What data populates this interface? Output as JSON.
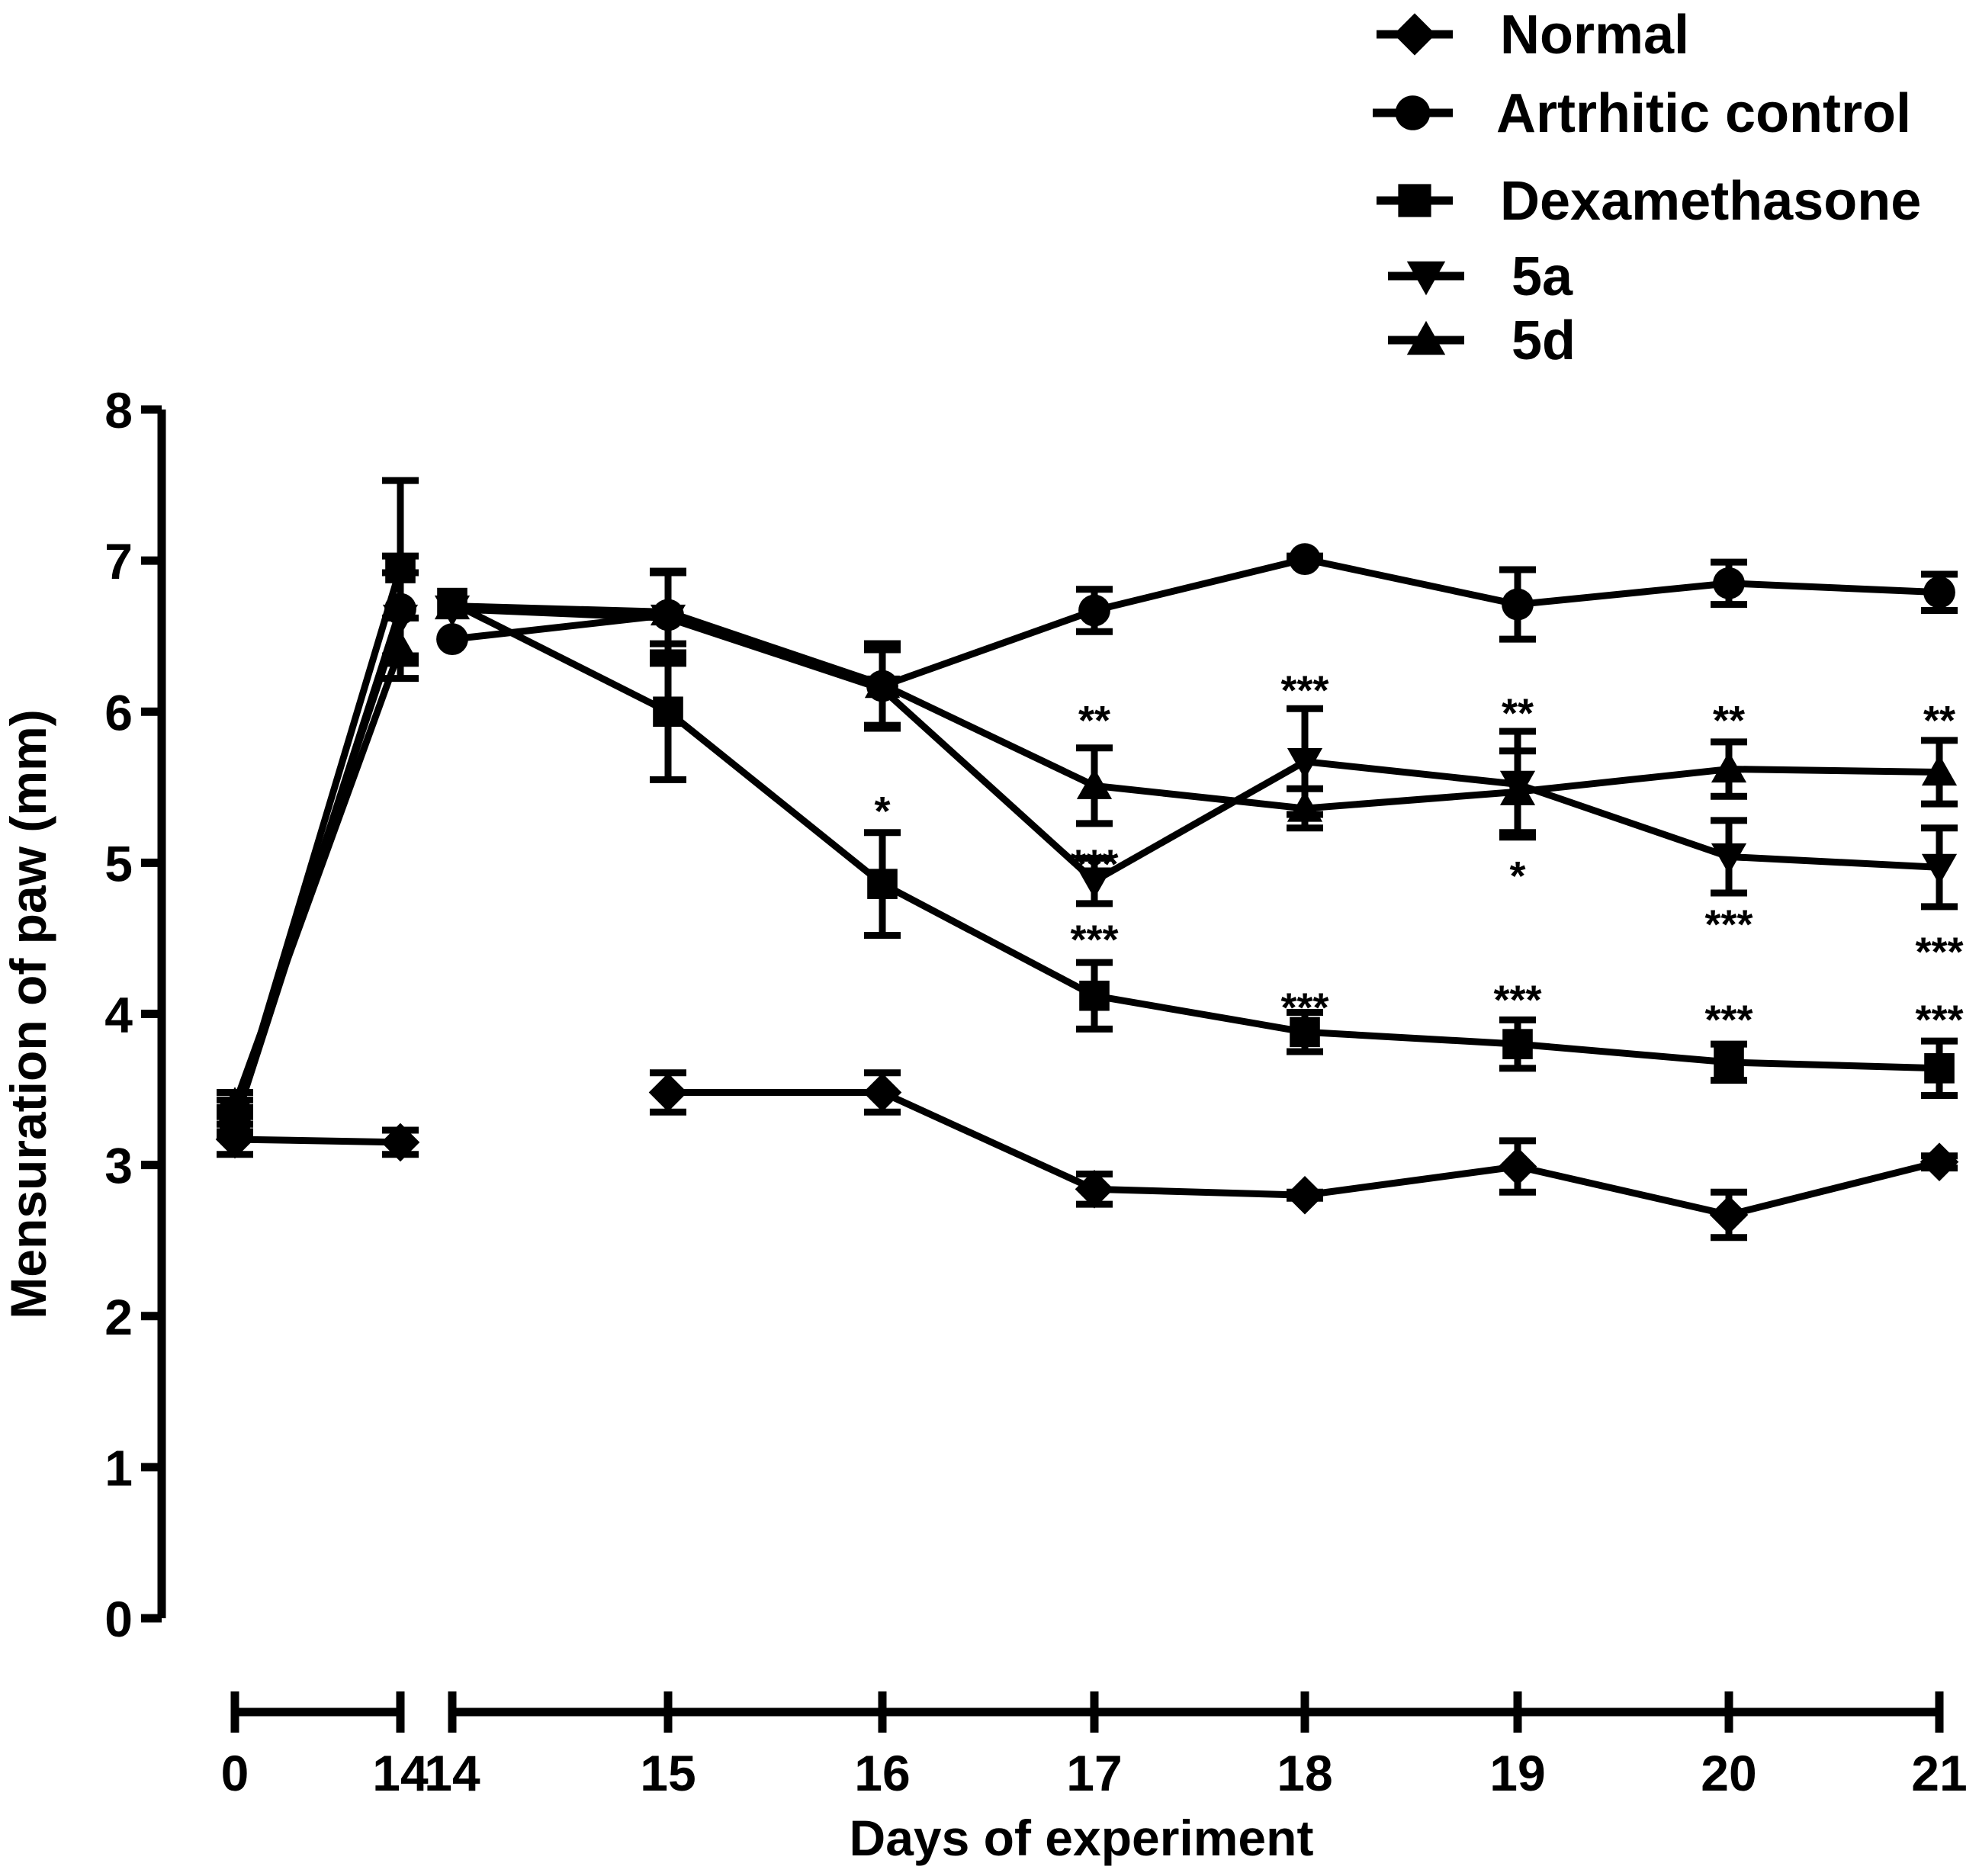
{
  "chart_data": {
    "type": "line",
    "xlabel": "Days of experiment",
    "ylabel": "Mensuration of paw (mm)",
    "ylim": [
      0,
      8
    ],
    "yticks": [
      "0",
      "1",
      "2",
      "3",
      "4",
      "5",
      "6",
      "7",
      "8"
    ],
    "x_segments": [
      {
        "ticks": [
          "0",
          "14"
        ]
      },
      {
        "ticks": [
          "14",
          "15",
          "16",
          "17",
          "18",
          "19",
          "20",
          "21"
        ]
      }
    ],
    "legend_position": "top-right",
    "series": [
      {
        "name": "Normal",
        "marker": "diamond",
        "segment1": {
          "values": [
            3.17,
            3.15
          ],
          "errors": [
            0.1,
            0.08
          ]
        },
        "segment2": {
          "values": [
            null,
            3.48,
            3.48,
            2.84,
            2.8,
            2.99,
            2.67,
            3.02
          ],
          "errors": [
            null,
            0.13,
            0.13,
            0.1,
            0.02,
            0.17,
            0.15,
            0.04
          ]
        }
      },
      {
        "name": "Artrhitic control",
        "marker": "circle",
        "segment1": {
          "values": [
            3.28,
            6.68
          ],
          "errors": [
            0.08,
            0.35
          ]
        },
        "segment2": {
          "values": [
            6.48,
            6.64,
            6.17,
            6.67,
            7.01,
            6.71,
            6.85,
            6.79
          ],
          "errors": [
            0,
            0.28,
            0.28,
            0.14,
            0.02,
            0.23,
            0.14,
            0.12
          ]
        }
      },
      {
        "name": "Dexamethasone",
        "marker": "square",
        "segment1": {
          "values": [
            3.3,
            6.95
          ],
          "errors": [
            0.08,
            0.58
          ]
        },
        "segment2": {
          "values": [
            6.72,
            6.0,
            4.86,
            4.12,
            3.88,
            3.8,
            3.68,
            3.64
          ],
          "errors": [
            0,
            0.45,
            0.34,
            0.22,
            0.13,
            0.16,
            0.12,
            0.18
          ]
        }
      },
      {
        "name": "5a",
        "marker": "triangle-down",
        "segment1": {
          "values": [
            3.35,
            6.62
          ],
          "errors": [
            0.08,
            0.3
          ]
        },
        "segment2": {
          "values": [
            6.68,
            6.62,
            6.15,
            4.88,
            5.67,
            5.52,
            5.04,
            4.97
          ],
          "errors": [
            0,
            0.3,
            0.26,
            0.15,
            0.35,
            0.35,
            0.24,
            0.26
          ]
        }
      },
      {
        "name": "5d",
        "marker": "triangle-up",
        "segment1": {
          "values": [
            3.4,
            6.42
          ],
          "errors": [
            0.08,
            0.2
          ]
        },
        "segment2": {
          "values": [
            6.7,
            6.66,
            6.18,
            5.51,
            5.36,
            5.47,
            5.62,
            5.6
          ],
          "errors": [
            0,
            0.27,
            0.27,
            0.25,
            0.13,
            0.27,
            0.18,
            0.21
          ]
        }
      }
    ],
    "annotations": [
      {
        "text": "*",
        "x_index": 2,
        "y": 5.35
      },
      {
        "text": "**",
        "x_index": 3,
        "y": 5.95
      },
      {
        "text": "***",
        "x_index": 3,
        "y": 5.0
      },
      {
        "text": "***",
        "x_index": 3,
        "y": 4.5
      },
      {
        "text": "***",
        "x_index": 4,
        "y": 6.15
      },
      {
        "text": "***",
        "x_index": 4,
        "y": 4.05
      },
      {
        "text": "**",
        "x_index": 5,
        "y": 6.0
      },
      {
        "text": "*",
        "x_index": 5,
        "y": 4.92
      },
      {
        "text": "***",
        "x_index": 5,
        "y": 4.1
      },
      {
        "text": "**",
        "x_index": 6,
        "y": 5.95
      },
      {
        "text": "***",
        "x_index": 6,
        "y": 4.6
      },
      {
        "text": "***",
        "x_index": 6,
        "y": 3.97
      },
      {
        "text": "**",
        "x_index": 7,
        "y": 5.95
      },
      {
        "text": "***",
        "x_index": 7,
        "y": 4.42
      },
      {
        "text": "***",
        "x_index": 7,
        "y": 3.97
      }
    ]
  }
}
